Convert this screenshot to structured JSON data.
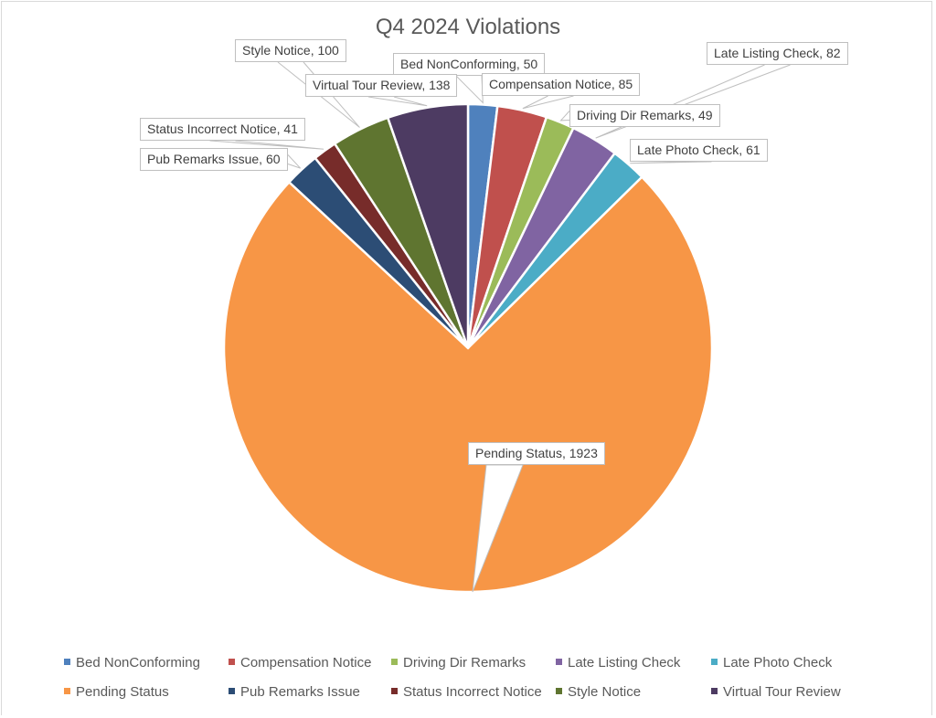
{
  "chart_data": {
    "type": "pie",
    "title": "Q4 2024 Violations",
    "start_angle_deg": 0,
    "direction": "clockwise",
    "categories": [
      "Bed NonConforming",
      "Compensation Notice",
      "Driving Dir Remarks",
      "Late Listing Check",
      "Late Photo Check",
      "Pending Status",
      "Pub Remarks Issue",
      "Status Incorrect Notice",
      "Style Notice",
      "Virtual Tour Review"
    ],
    "values": [
      50,
      85,
      49,
      82,
      61,
      1923,
      60,
      41,
      100,
      138
    ],
    "colors": [
      "#4f81bd",
      "#c0504d",
      "#9bbb59",
      "#8064a2",
      "#4bacc6",
      "#f79646",
      "#2c4d75",
      "#772c2a",
      "#5f7530",
      "#4d3b62"
    ],
    "data_labels": [
      "Bed NonConforming, 50",
      "Compensation Notice, 85",
      "Driving Dir Remarks, 49",
      "Late Listing Check, 82",
      "Late Photo Check, 61",
      "Pending Status, 1923",
      "Pub Remarks Issue, 60",
      "Status Incorrect Notice, 41",
      "Style Notice, 100",
      "Virtual Tour Review, 138"
    ],
    "legend_position": "bottom",
    "legend": [
      "Bed NonConforming",
      "Compensation Notice",
      "Driving Dir Remarks",
      "Late Listing Check",
      "Late Photo Check",
      "Pending Status",
      "Pub Remarks Issue",
      "Status Incorrect Notice",
      "Style Notice",
      "Virtual Tour Review"
    ]
  }
}
